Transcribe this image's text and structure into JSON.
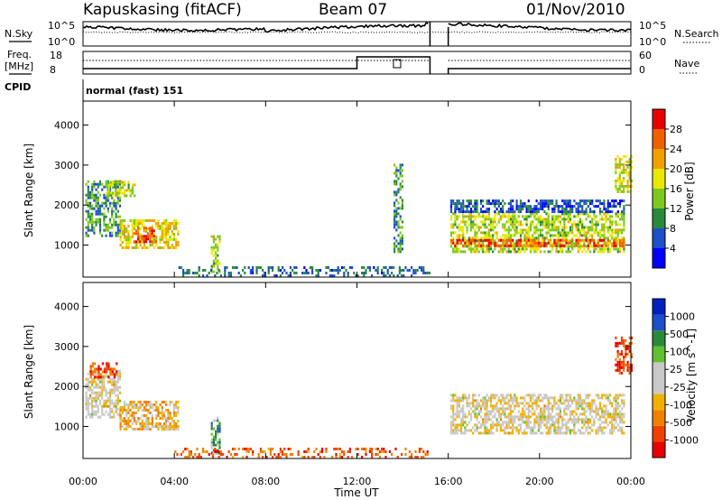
{
  "header": {
    "station": "Kapuskasing (fitACF)",
    "beam": "Beam 07",
    "date": "01/Nov/2010"
  },
  "top_panels": {
    "nsky_label": "N.Sky",
    "nsky_ticks": [
      "10^5",
      "10^0"
    ],
    "nsearch_label": "N.Search",
    "nsearch_ticks": [
      "10^5",
      "10^0"
    ],
    "freq_label": "Freq.",
    "freq_unit": "[MHz]",
    "freq_ticks": [
      "18",
      "8"
    ],
    "nave_label": "Nave",
    "nave_ticks": [
      "60",
      "0"
    ],
    "cpid_label": "CPID",
    "cpid_value": "normal (fast) 151"
  },
  "chart_data": [
    {
      "type": "heatmap",
      "panel": "power",
      "ylabel": "Slant Range [km]",
      "xlabel": "",
      "yticks": [
        1000,
        2000,
        3000,
        4000
      ],
      "ylim": [
        200,
        4600
      ],
      "xlim": [
        0,
        24
      ],
      "colorbar_label": "Power [dB]",
      "colorbar_ticks": [
        "28",
        "24",
        "20",
        "16",
        "12",
        "8",
        "4"
      ],
      "colorbar_colors": [
        "#0000ff",
        "#1e4fc8",
        "#2a8a3c",
        "#7cc820",
        "#e8e800",
        "#f0a000",
        "#f06000",
        "#e80000"
      ],
      "gaps_hours": [
        [
          15.2,
          16.0
        ]
      ],
      "blobs": [
        {
          "t0": 0.1,
          "t1": 1.6,
          "r0": 1200,
          "r1": 2600,
          "level": 0.3
        },
        {
          "t0": 1.0,
          "t1": 2.3,
          "r0": 2200,
          "r1": 2600,
          "level": 0.5
        },
        {
          "t0": 1.6,
          "t1": 4.2,
          "r0": 900,
          "r1": 1600,
          "level": 0.6
        },
        {
          "t0": 2.2,
          "t1": 3.2,
          "r0": 1050,
          "r1": 1400,
          "level": 0.95
        },
        {
          "t0": 5.6,
          "t1": 6.0,
          "r0": 300,
          "r1": 1200,
          "level": 0.5
        },
        {
          "t0": 13.6,
          "t1": 14.0,
          "r0": 800,
          "r1": 3000,
          "level": 0.3
        },
        {
          "t0": 16.0,
          "t1": 23.7,
          "r0": 800,
          "r1": 1800,
          "level": 0.5
        },
        {
          "t0": 16.0,
          "t1": 23.7,
          "r0": 950,
          "r1": 1100,
          "level": 0.85
        },
        {
          "t0": 16.0,
          "t1": 23.7,
          "r0": 1800,
          "r1": 2100,
          "level": 0.15
        },
        {
          "t0": 23.3,
          "t1": 24.0,
          "r0": 2300,
          "r1": 3200,
          "level": 0.55
        }
      ],
      "ground_band": {
        "r0": 200,
        "r1": 450,
        "t0": 4.0,
        "t1": 15.2,
        "level": 0.2
      }
    },
    {
      "type": "heatmap",
      "panel": "velocity",
      "ylabel": "Slant Range [km]",
      "xlabel": "Time UT",
      "xticks": [
        "00:00",
        "04:00",
        "08:00",
        "12:00",
        "16:00",
        "20:00",
        "00:00"
      ],
      "yticks": [
        1000,
        2000,
        3000,
        4000
      ],
      "ylim": [
        200,
        4600
      ],
      "xlim": [
        0,
        24
      ],
      "colorbar_label": "Velocity [m s^-1]",
      "colorbar_ticks": [
        "1000",
        "500",
        "100",
        "25",
        "-25",
        "-100",
        "-500",
        "-1000"
      ],
      "colorbar_colors": [
        "#e80000",
        "#f04000",
        "#f08000",
        "#f0b000",
        "#c8c8c8",
        "#c8c8c8",
        "#60c030",
        "#2a8a3c",
        "#1e4fc8",
        "#0020c0"
      ],
      "gaps_hours": [
        [
          15.2,
          16.0
        ]
      ],
      "blobs": [
        {
          "t0": 0.1,
          "t1": 1.6,
          "r0": 1200,
          "r1": 2400,
          "level": 0.45
        },
        {
          "t0": 0.3,
          "t1": 1.5,
          "r0": 2200,
          "r1": 2600,
          "level": 0.1
        },
        {
          "t0": 1.6,
          "t1": 4.2,
          "r0": 900,
          "r1": 1600,
          "level": 0.35
        },
        {
          "t0": 5.6,
          "t1": 6.0,
          "r0": 300,
          "r1": 1200,
          "level": 0.7
        },
        {
          "t0": 16.0,
          "t1": 23.7,
          "r0": 800,
          "r1": 1800,
          "level": 0.45
        },
        {
          "t0": 23.3,
          "t1": 24.0,
          "r0": 2300,
          "r1": 3200,
          "level": 0.1
        }
      ],
      "ground_band": {
        "r0": 200,
        "r1": 450,
        "t0": 4.0,
        "t1": 15.2,
        "level": 0.15
      }
    }
  ]
}
